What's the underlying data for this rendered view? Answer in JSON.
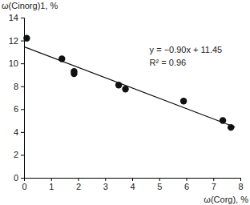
{
  "chart_data": {
    "type": "scatter",
    "x_label": "ω(Corg), %",
    "y_label": "ω(Cinorg)1, %",
    "annotations": [
      "y = −0.90x + 11.45",
      "R² = 0.96"
    ],
    "series": [
      {
        "type": "scatter",
        "color": "#111111",
        "marker": "circle",
        "x": [
          0.1,
          1.4,
          1.85,
          1.85,
          3.5,
          3.75,
          5.9,
          7.35,
          7.65
        ],
        "values": [
          12.2,
          10.4,
          9.3,
          9.1,
          8.1,
          7.75,
          6.7,
          5.0,
          4.4
        ]
      },
      {
        "type": "line",
        "color": "#111111",
        "line_style": "solid",
        "x": [
          0,
          7.8
        ],
        "values": [
          11.45,
          4.43
        ]
      }
    ],
    "xlim": [
      0,
      8
    ],
    "xticks": [
      0,
      1,
      2,
      3,
      4,
      5,
      6,
      7,
      8
    ],
    "ylim": [
      0,
      14
    ],
    "yticks": [
      0,
      2,
      4,
      6,
      8,
      10,
      12,
      14
    ],
    "grid": false
  }
}
